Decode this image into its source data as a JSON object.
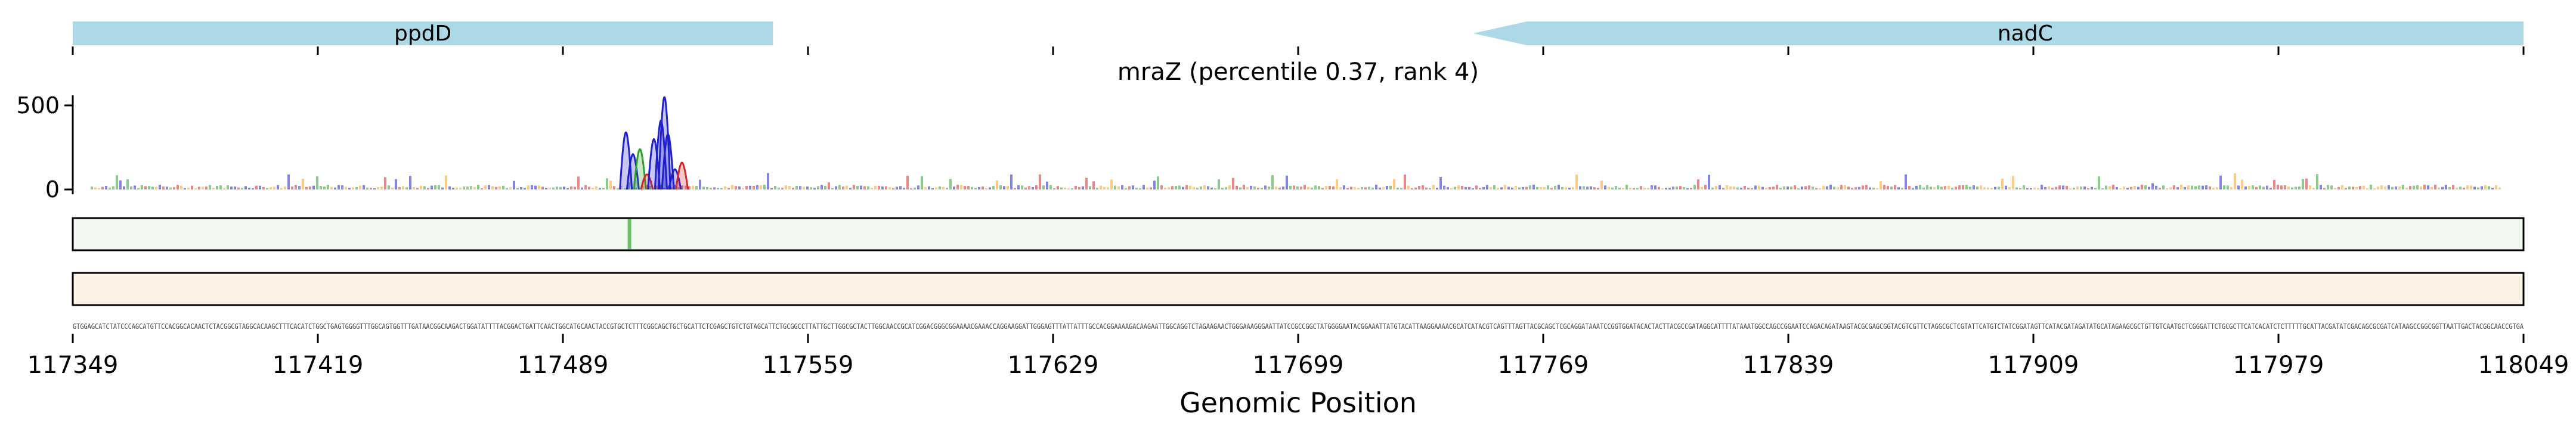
{
  "colors": {
    "gene_fill": "#add8e6",
    "track1_fill": "#f1f8ef",
    "track1_highlight": "#6cc06c",
    "track2_fill": "#fdf2e6",
    "base_A": "#2ca02c",
    "base_C": "#1f1fcc",
    "base_G": "#ff9f1c",
    "base_T": "#d62728"
  },
  "chart_data": {
    "type": "sequence-logo-track",
    "title": "mraZ (percentile 0.37, rank 4)",
    "xlabel": "Genomic Position",
    "ylabel": "",
    "xlim": [
      117349,
      118049
    ],
    "ylim": [
      0,
      560
    ],
    "ytick_labels": [
      "0",
      "500"
    ],
    "ytick_values": [
      0,
      500
    ],
    "xtick_values": [
      117349,
      117419,
      117489,
      117559,
      117629,
      117699,
      117769,
      117839,
      117909,
      117979,
      118049
    ],
    "xtick_labels": [
      "117349",
      "117419",
      "117489",
      "117559",
      "117629",
      "117699",
      "117769",
      "117839",
      "117909",
      "117979",
      "118049"
    ],
    "genes": [
      {
        "name": "ppdD",
        "start": 117349,
        "end": 117549,
        "strand": "+"
      },
      {
        "name": "nadC",
        "start": 117749,
        "end": 118049,
        "strand": "-"
      }
    ],
    "signal_peaks": [
      {
        "pos": 117507,
        "value": 340,
        "base": "C"
      },
      {
        "pos": 117509,
        "value": 210,
        "base": "C"
      },
      {
        "pos": 117511,
        "value": 240,
        "base": "A"
      },
      {
        "pos": 117513,
        "value": 90,
        "base": "T"
      },
      {
        "pos": 117515,
        "value": 300,
        "base": "C"
      },
      {
        "pos": 117517,
        "value": 410,
        "base": "C"
      },
      {
        "pos": 117518,
        "value": 550,
        "base": "C"
      },
      {
        "pos": 117519,
        "value": 330,
        "base": "C"
      },
      {
        "pos": 117521,
        "value": 120,
        "base": "C"
      },
      {
        "pos": 117523,
        "value": 160,
        "base": "T"
      }
    ],
    "track1_highlight_pos": 117508,
    "sequence": "GTGGAGCATCTATCCCAGCATGTTCCACGGCACAACTCTACGGCGTAGGCACAAGCTTTCACATCTGGCTGAGTGGGGTTTGGCAGTGGTTTGATAACGGCAAGACTGGATATTTTACGGACTGATTCAACTGGCATGCAACTACCGTGCTCTTTCGGCAGCTGCTGCATTCTCGAGCTGTCTGTAGCATTCTGCGGCCTTATTGCTTGGCGCTACTTGGCAACCGCATCGGACGGGCGGAAAACGAAACCAGGAAGGATTGGGAGTTTATTATTTGCCACGGAAAAGACAAGAATTGGCAGGTCTAGAAGAACTGGGAAAGGGAATTATCCGCCGGCTATGGGGAATACGGAAATTATGTACATTAAGGAAAACGCATCATACGTCAGTTTAGTTACGCAGCTCGCAGGATAAATCCGGTGGATACACTACTTACGCCGATAGGCATTTTATAAATGGCCAGCCGGAATCCAGACAGATAAGTACGCGAGCGGTACGTCGTTCTAGGCGCTCGTATTCATGTCTATCGGATAGTTCATACGATAGATATGCATAGAAGCGCTGTTGTCAATGCTCGGGATTCTGCGCTTCATCACATCTCTTTTTGCATTACGATATCGACAGCGCGATCATAAGCCGGCGGTTAATTGACTACGGCAACCGTGA"
  }
}
